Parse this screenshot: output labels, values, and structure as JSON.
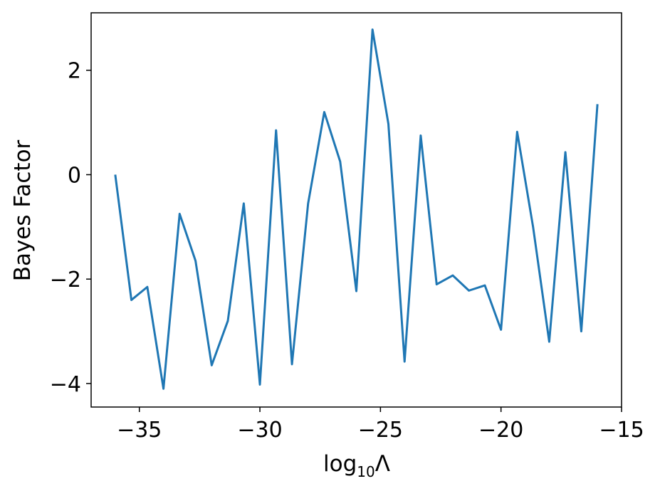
{
  "chart_data": {
    "type": "line",
    "title": "",
    "xlabel": {
      "prefix": "log",
      "subscript": "10",
      "suffix": "Λ"
    },
    "ylabel": "Bayes Factor",
    "xlim": [
      -37,
      -15
    ],
    "ylim": [
      -4.45,
      3.1
    ],
    "grid": false,
    "legend": "none",
    "line_color": "#1f77b4",
    "xticks": [
      {
        "value": -35,
        "label": "−35"
      },
      {
        "value": -30,
        "label": "−30"
      },
      {
        "value": -25,
        "label": "−25"
      },
      {
        "value": -20,
        "label": "−20"
      },
      {
        "value": -15,
        "label": "−15"
      }
    ],
    "yticks": [
      {
        "value": 2,
        "label": "2"
      },
      {
        "value": 0,
        "label": "0"
      },
      {
        "value": -2,
        "label": "−2"
      },
      {
        "value": -4,
        "label": "−4"
      }
    ],
    "series": [
      {
        "x": [
          -36.0,
          -35.33,
          -34.67,
          -34.0,
          -33.33,
          -32.67,
          -32.0,
          -31.33,
          -30.67,
          -30.0,
          -29.33,
          -28.67,
          -28.0,
          -27.33,
          -26.67,
          -26.0,
          -25.33,
          -24.67,
          -24.0,
          -23.33,
          -22.67,
          -22.0,
          -21.33,
          -20.67,
          -20.0,
          -19.33,
          -18.67,
          -18.0,
          -17.33,
          -16.67,
          -16.0
        ],
        "y": [
          0.0,
          -2.4,
          -2.15,
          -4.1,
          -0.75,
          -1.65,
          -3.65,
          -2.8,
          -0.55,
          -4.02,
          0.85,
          -3.63,
          -0.55,
          1.2,
          0.25,
          -2.23,
          2.78,
          0.97,
          -3.58,
          0.75,
          -2.1,
          -1.93,
          -2.22,
          -2.12,
          -2.97,
          0.82,
          -1.0,
          -3.2,
          0.43,
          -3.0,
          1.35
        ]
      }
    ]
  }
}
